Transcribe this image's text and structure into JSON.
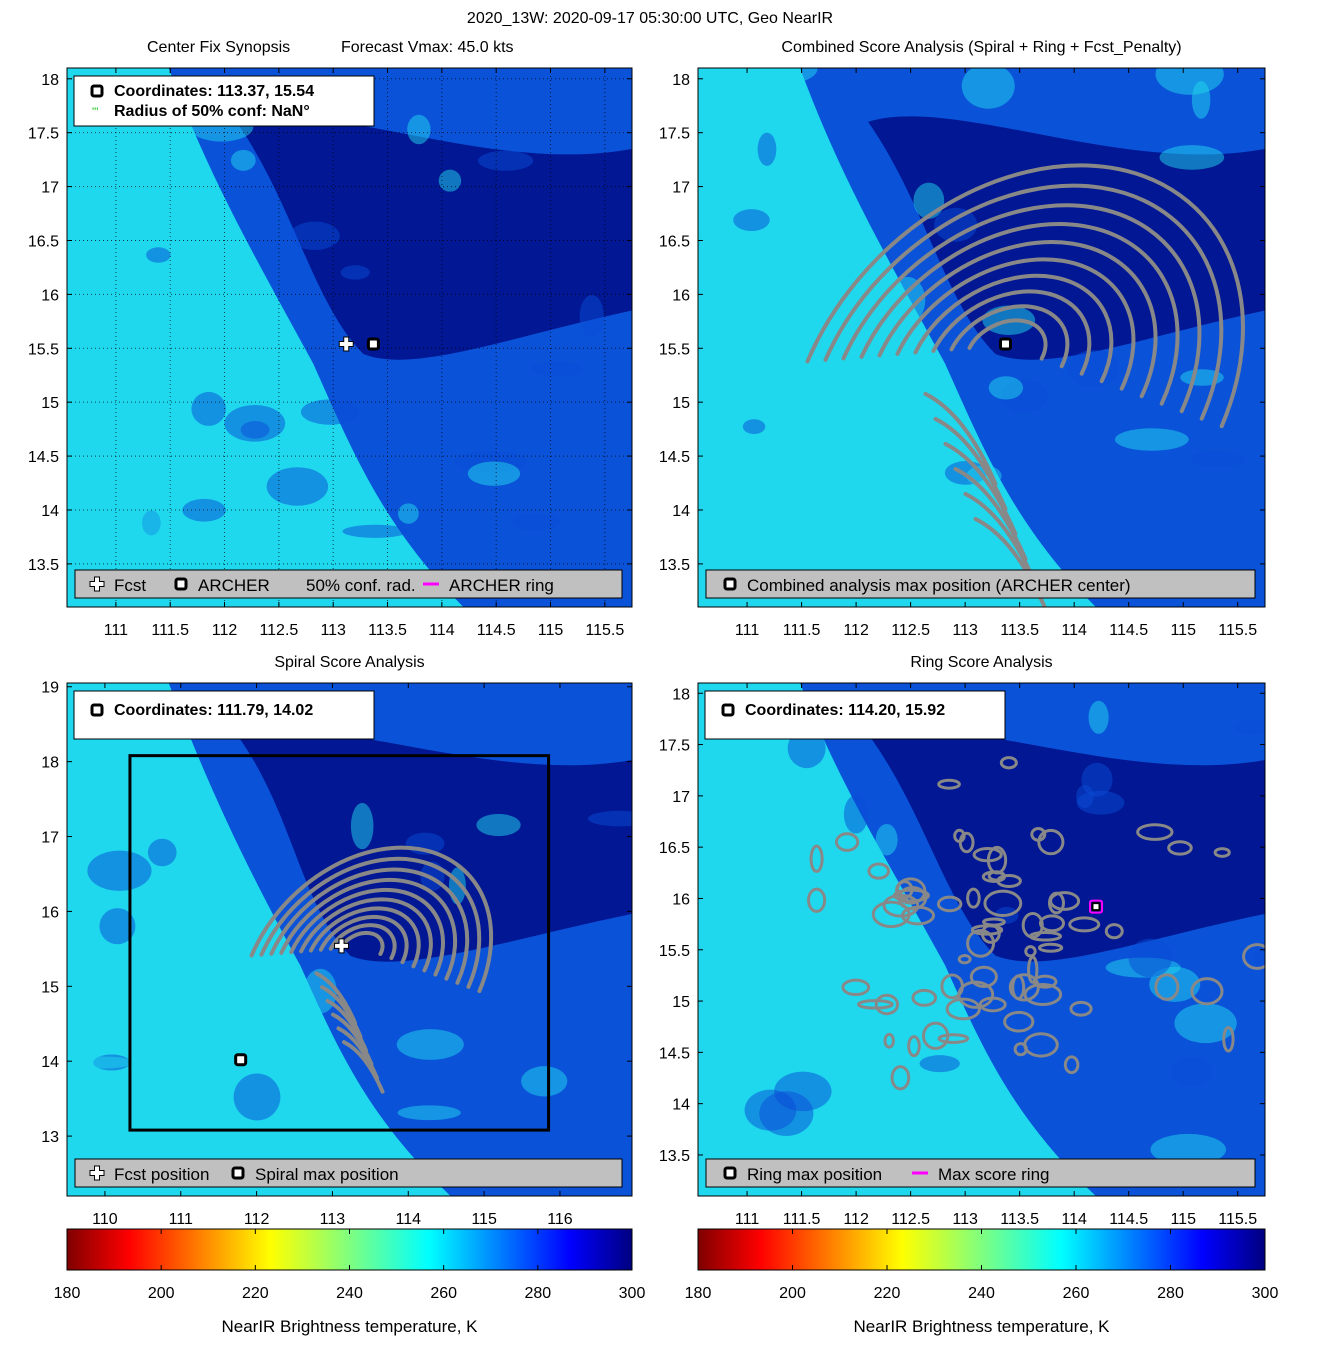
{
  "figure": {
    "title": "2020_13W: 2020-09-17 05:30:00 UTC, Geo NearIR"
  },
  "colors": {
    "bg_dark": "#00118c",
    "bg_mid": "#0a4bd6",
    "bg_light": "#1fd8ee",
    "contour": "#888888",
    "ring": "#ff00ff",
    "legend_bg": "#c0c0c0",
    "confidence": "#00c000"
  },
  "chart_data": [
    {
      "id": "synopsis",
      "type": "heatmap",
      "title_left": "Center Fix Synopsis",
      "title_right": "Forecast Vmax: 45.0 kts",
      "xlim": [
        110.55,
        115.75
      ],
      "ylim": [
        13.1,
        18.1
      ],
      "xticks": [
        "111",
        "111.5",
        "112",
        "112.5",
        "113",
        "113.5",
        "114",
        "114.5",
        "115",
        "115.5"
      ],
      "yticks": [
        "13.5",
        "14",
        "14.5",
        "15",
        "15.5",
        "16",
        "16.5",
        "17",
        "17.5",
        "18"
      ],
      "grid": true,
      "info_lines": [
        "Coordinates: 113.37, 15.54",
        "Radius of 50% conf: NaN°"
      ],
      "info_icons": [
        "square-marker",
        "confidence-marker"
      ],
      "legend": [
        {
          "icon": "plus-marker",
          "label": "Fcst"
        },
        {
          "icon": "square-marker",
          "label": "ARCHER"
        },
        {
          "icon": "none",
          "label": "50% conf. rad."
        },
        {
          "icon": "ring-line",
          "label": "ARCHER ring"
        }
      ],
      "markers": [
        {
          "kind": "plus",
          "x": 113.12,
          "y": 15.54
        },
        {
          "kind": "square",
          "x": 113.37,
          "y": 15.54
        }
      ],
      "center": [
        113.37,
        15.54
      ]
    },
    {
      "id": "combined",
      "type": "heatmap",
      "title": "Combined Score Analysis (Spiral + Ring + Fcst_Penalty)",
      "xlim": [
        110.55,
        115.75
      ],
      "ylim": [
        13.1,
        18.1
      ],
      "xticks": [
        "111",
        "111.5",
        "112",
        "112.5",
        "113",
        "113.5",
        "114",
        "114.5",
        "115",
        "115.5"
      ],
      "yticks": [
        "13.5",
        "14",
        "14.5",
        "15",
        "15.5",
        "16",
        "16.5",
        "17",
        "17.5",
        "18"
      ],
      "grid": false,
      "legend": [
        {
          "icon": "square-marker",
          "label": "Combined analysis max position (ARCHER center)"
        }
      ],
      "markers": [
        {
          "kind": "square",
          "x": 113.37,
          "y": 15.54
        }
      ],
      "center": [
        113.37,
        15.54
      ]
    },
    {
      "id": "spiral",
      "type": "heatmap",
      "title": "Spiral Score Analysis",
      "xlim": [
        109.5,
        116.95
      ],
      "ylim": [
        12.2,
        19.05
      ],
      "xticks": [
        "110",
        "111",
        "112",
        "113",
        "114",
        "115",
        "116"
      ],
      "yticks": [
        "13",
        "14",
        "15",
        "16",
        "17",
        "18",
        "19"
      ],
      "grid": false,
      "info_lines": [
        "Coordinates: 111.79, 14.02"
      ],
      "info_icons": [
        "square-marker"
      ],
      "legend": [
        {
          "icon": "plus-marker",
          "label": "Fcst position"
        },
        {
          "icon": "square-marker",
          "label": "Spiral max position"
        }
      ],
      "markers": [
        {
          "kind": "plus",
          "x": 113.12,
          "y": 15.54
        },
        {
          "kind": "square",
          "x": 111.79,
          "y": 14.02
        }
      ],
      "box": {
        "x1": 110.33,
        "x2": 115.85,
        "y1": 13.08,
        "y2": 18.08
      },
      "center": [
        113.37,
        15.54
      ]
    },
    {
      "id": "ring",
      "type": "heatmap",
      "title": "Ring Score Analysis",
      "xlim": [
        110.55,
        115.75
      ],
      "ylim": [
        13.1,
        18.1
      ],
      "xticks": [
        "111",
        "111.5",
        "112",
        "112.5",
        "113",
        "113.5",
        "114",
        "114.5",
        "115",
        "115.5"
      ],
      "yticks": [
        "13.5",
        "14",
        "14.5",
        "15",
        "15.5",
        "16",
        "16.5",
        "17",
        "17.5",
        "18"
      ],
      "grid": false,
      "info_lines": [
        "Coordinates: 114.20, 15.92"
      ],
      "info_icons": [
        "square-marker"
      ],
      "legend": [
        {
          "icon": "square-marker",
          "label": "Ring max position"
        },
        {
          "icon": "ring-line",
          "label": "Max score ring"
        }
      ],
      "markers": [
        {
          "kind": "ringsquare",
          "x": 114.2,
          "y": 15.92
        }
      ],
      "center": [
        113.37,
        15.54
      ]
    }
  ],
  "colorbars": [
    {
      "ticks": [
        "180",
        "200",
        "220",
        "240",
        "260",
        "280",
        "300"
      ],
      "range": [
        180,
        300
      ],
      "label": "NearIR Brightness temperature, K"
    },
    {
      "ticks": [
        "180",
        "200",
        "220",
        "240",
        "260",
        "280",
        "300"
      ],
      "range": [
        180,
        300
      ],
      "label": "NearIR Brightness temperature, K"
    }
  ]
}
